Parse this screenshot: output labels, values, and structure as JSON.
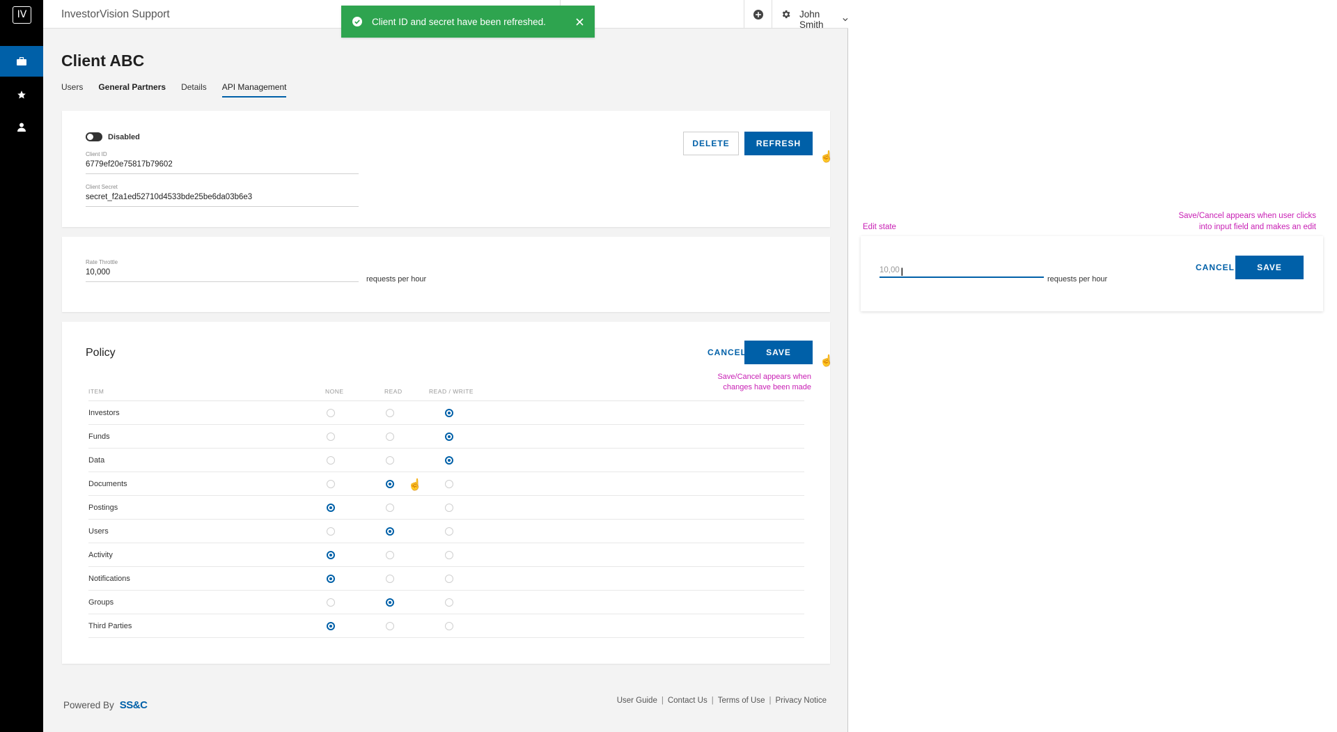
{
  "sidebar": {
    "logo": "IV",
    "items": [
      {
        "icon": "briefcase-icon",
        "active": true
      },
      {
        "icon": "star-icon",
        "active": false
      },
      {
        "icon": "person-icon",
        "active": false
      }
    ]
  },
  "header": {
    "app_title": "InvestorVision Support",
    "search_placeholder": "",
    "user_name": "John Smith"
  },
  "toast": {
    "message": "Client ID and secret have been refreshed.",
    "color": "#2ea44f"
  },
  "page": {
    "title": "Client ABC",
    "tabs": [
      {
        "label": "Users"
      },
      {
        "label": "General Partners"
      },
      {
        "label": "Details"
      },
      {
        "label": "API Management"
      }
    ]
  },
  "credentials": {
    "toggle_label": "Disabled",
    "client_id_label": "Client ID",
    "client_id": "6779ef20e75817b79602",
    "client_secret_label": "Client Secret",
    "client_secret": "secret_f2a1ed52710d4533bde25be6da03b6e3",
    "delete_label": "DELETE",
    "refresh_label": "REFRESH"
  },
  "throttle": {
    "label": "Rate Throttle",
    "value": "10,000",
    "suffix": "requests per hour"
  },
  "policy": {
    "title": "Policy",
    "cancel_label": "CANCEL",
    "save_label": "SAVE",
    "note_line1": "Save/Cancel appears when",
    "note_line2": "changes have been made",
    "columns": [
      "ITEM",
      "NONE",
      "READ",
      "READ / WRITE"
    ],
    "rows": [
      {
        "item": "Investors",
        "selected": 2
      },
      {
        "item": "Funds",
        "selected": 2
      },
      {
        "item": "Data",
        "selected": 2
      },
      {
        "item": "Documents",
        "selected": 1
      },
      {
        "item": "Postings",
        "selected": 0
      },
      {
        "item": "Users",
        "selected": 1
      },
      {
        "item": "Activity",
        "selected": 0
      },
      {
        "item": "Notifications",
        "selected": 0
      },
      {
        "item": "Groups",
        "selected": 1
      },
      {
        "item": "Third Parties",
        "selected": 0
      }
    ]
  },
  "footer": {
    "powered_by": "Powered By",
    "brand": "SS&C",
    "links": [
      "User Guide",
      "Contact Us",
      "Terms of Use",
      "Privacy Notice"
    ]
  },
  "edit_state": {
    "label": "Edit state",
    "note_line1": "Save/Cancel appears when user clicks",
    "note_line2": "into input field and makes an edit",
    "value": "10,00",
    "suffix": "requests per hour",
    "cancel_label": "CANCEL",
    "save_label": "SAVE"
  },
  "colors": {
    "accent": "#0060a8",
    "annotation": "#c81fb4",
    "success": "#2ea44f"
  }
}
